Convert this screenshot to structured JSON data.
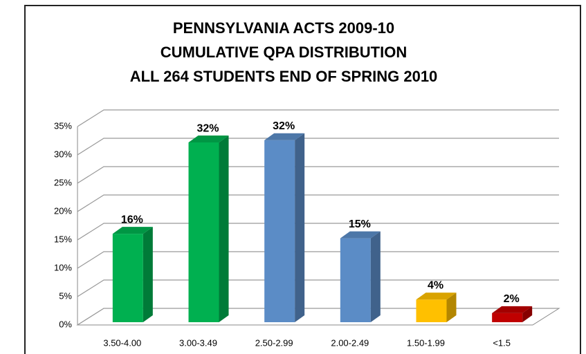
{
  "chart_data": {
    "type": "bar3d",
    "title": [
      "PENNSYLVANIA ACTS 2009-10",
      "CUMULATIVE QPA DISTRIBUTION",
      "ALL 264 STUDENTS END OF SPRING 2010"
    ],
    "categories": [
      "3.50-4.00",
      "3.00-3.49",
      "2.50-2.99",
      "2.00-2.49",
      "1.50-1.99",
      "<1.5"
    ],
    "values": [
      15.6,
      31.7,
      32.1,
      14.8,
      4.0,
      1.6
    ],
    "value_labels": [
      "16%",
      "32%",
      "32%",
      "15%",
      "4%",
      "2%"
    ],
    "colors": [
      "#00b050",
      "#00b050",
      "#5b8cc6",
      "#5b8cc6",
      "#ffc000",
      "#c00000"
    ],
    "ylim": [
      0,
      35
    ],
    "yticks": [
      {
        "value": 0,
        "label": "0%"
      },
      {
        "value": 5,
        "label": "5%"
      },
      {
        "value": 10,
        "label": "10%"
      },
      {
        "value": 15,
        "label": "15%"
      },
      {
        "value": 20,
        "label": "20%"
      },
      {
        "value": 25,
        "label": "25%"
      },
      {
        "value": 30,
        "label": "30%"
      },
      {
        "value": 35,
        "label": "35%"
      }
    ],
    "grid": true
  }
}
